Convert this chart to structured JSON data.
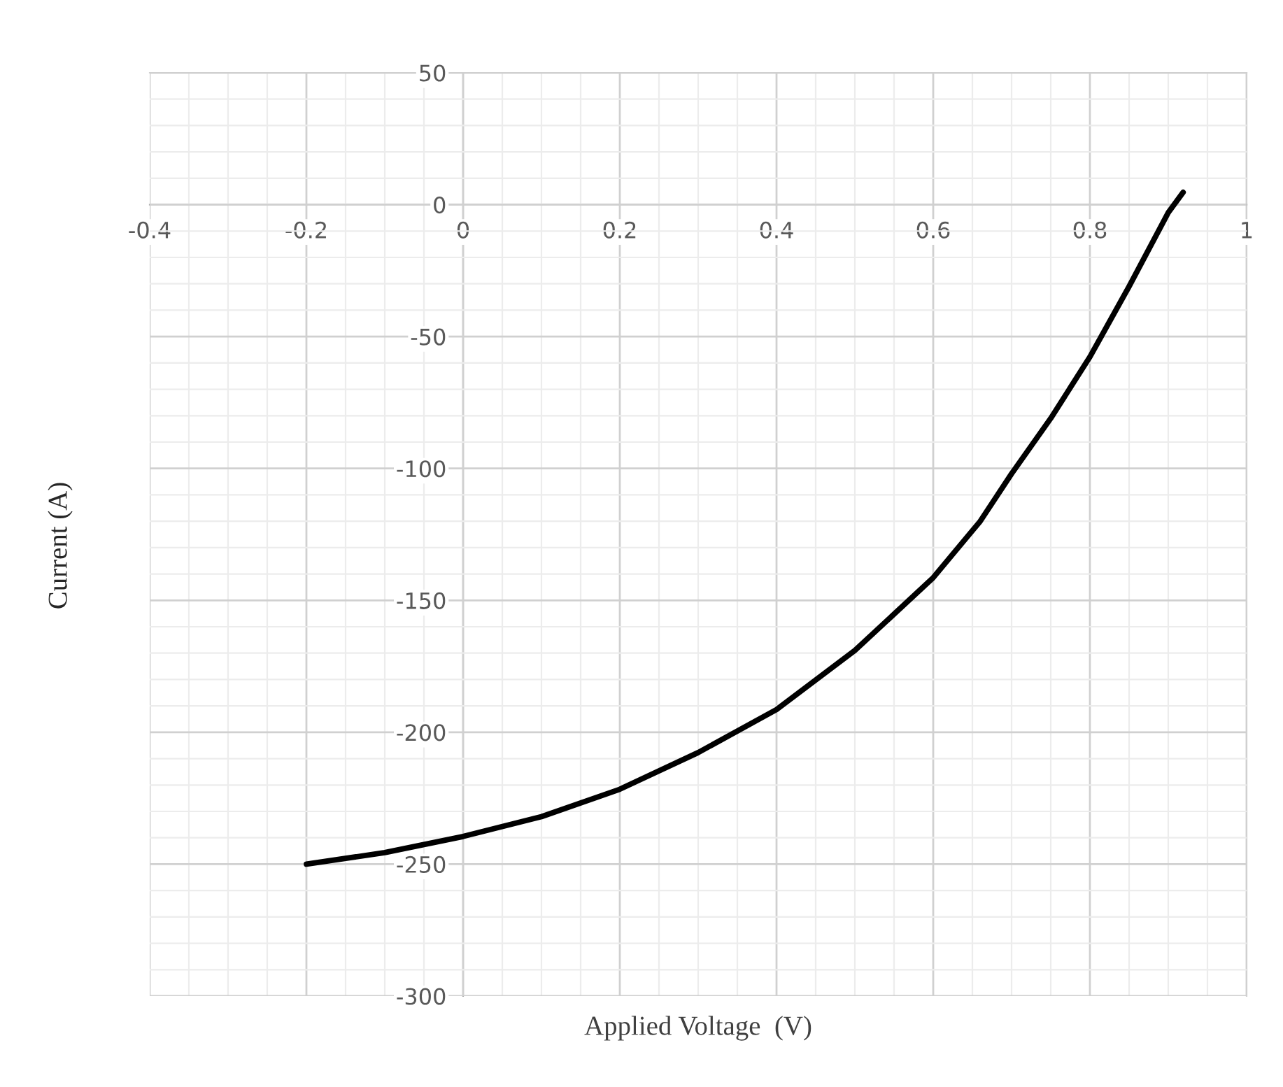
{
  "chart_data": {
    "type": "line",
    "xlabel": "Applied Voltage  (V)",
    "ylabel": "Current (A)",
    "series": [
      {
        "color": "#000000",
        "x": [
          -0.2,
          -0.1,
          0,
          0.1,
          0.2,
          0.3,
          0.4,
          0.5,
          0.6,
          0.66,
          0.7,
          0.75,
          0.8,
          0.85,
          0.9,
          0.919
        ],
        "values": [
          -250,
          -245.6,
          -239.5,
          -232,
          -221.6,
          -207.7,
          -191.4,
          -169,
          -141.4,
          -120,
          -102,
          -81,
          -57.7,
          -31,
          -3,
          4.7
        ]
      }
    ],
    "xlim": [
      -0.4,
      1
    ],
    "xticks": [
      -0.4,
      -0.2,
      0,
      0.2,
      0.4,
      0.6,
      0.8,
      1
    ],
    "ylim": [
      -300,
      50
    ],
    "yticks": [
      -300,
      -250,
      -200,
      -150,
      -100,
      -50,
      0,
      50
    ],
    "grid": true,
    "marker": "none",
    "line_style": "solid"
  }
}
